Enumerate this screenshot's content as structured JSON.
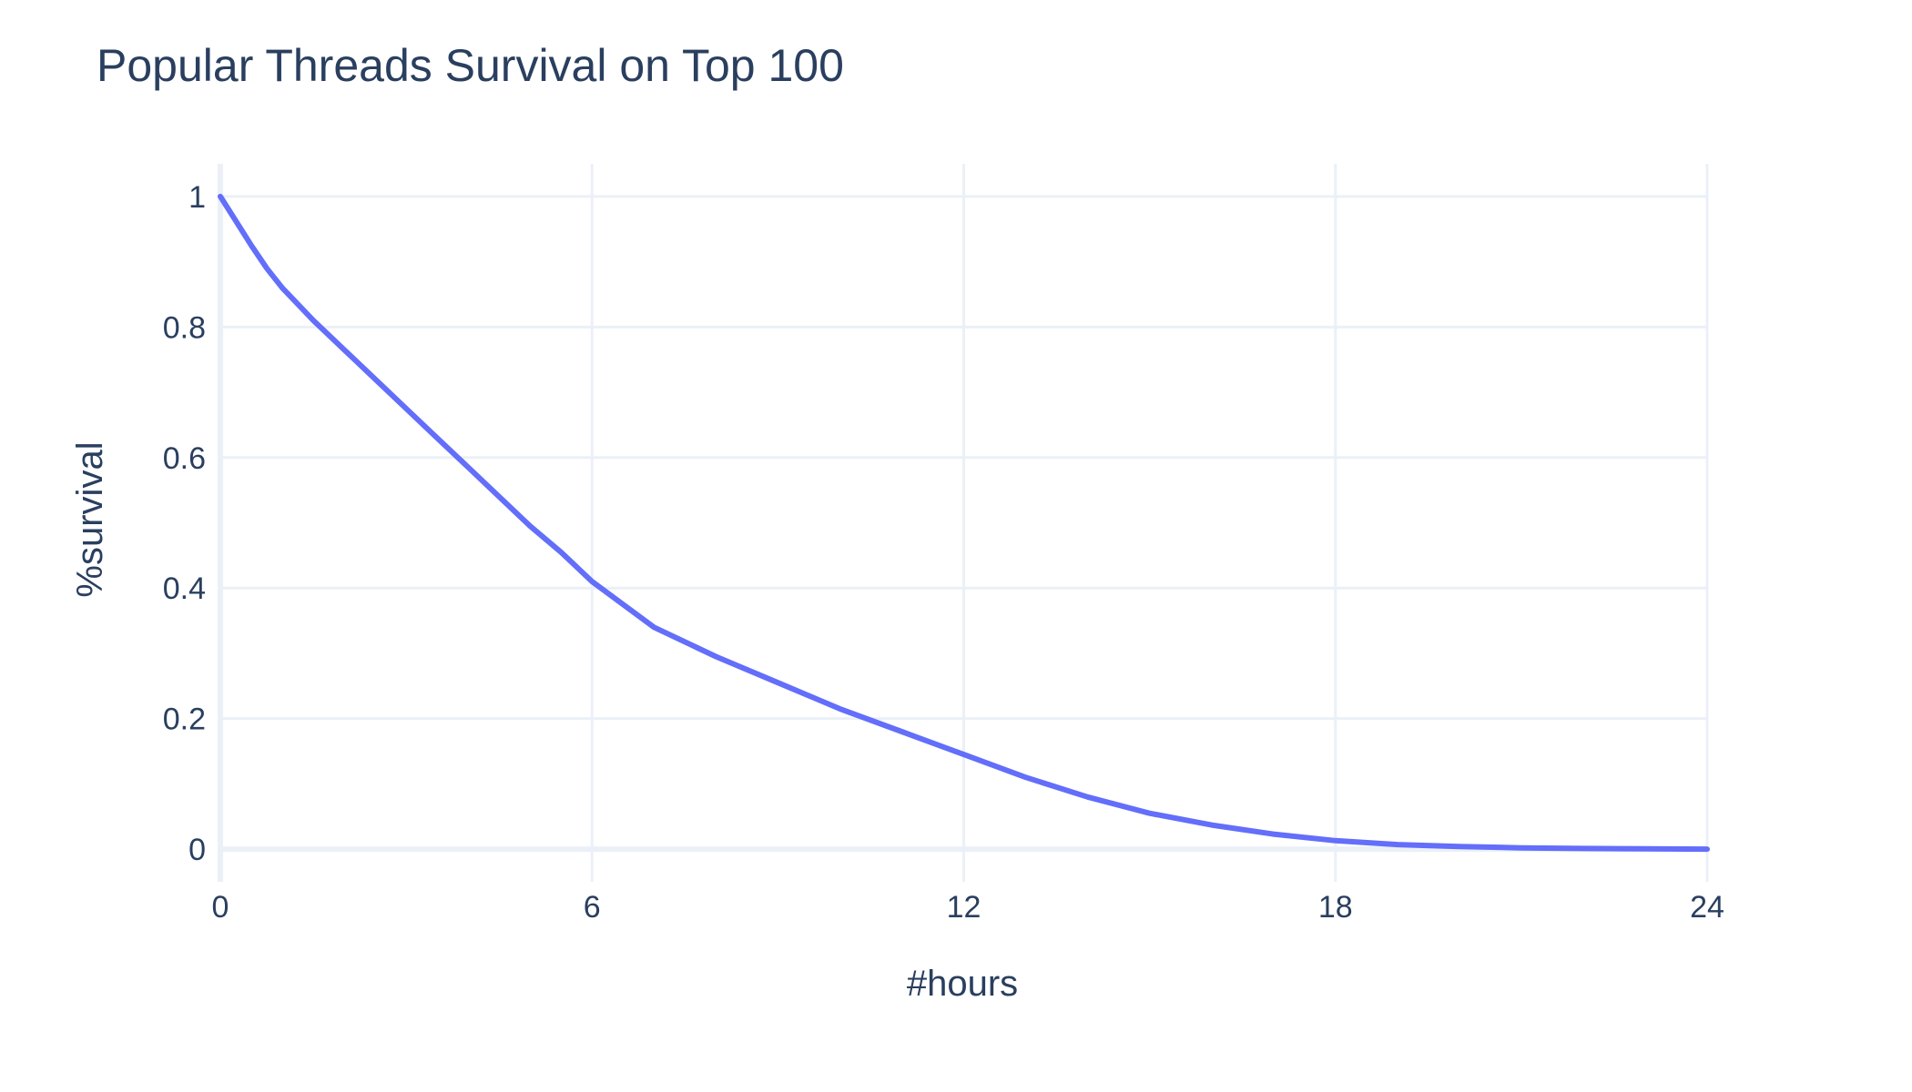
{
  "chart_data": {
    "type": "line",
    "title": "Popular Threads Survival on Top 100",
    "xlabel": "#hours",
    "ylabel": "%survival",
    "xlim": [
      0,
      24
    ],
    "ylim": [
      -0.05,
      1.05
    ],
    "x_ticks": [
      0,
      6,
      12,
      18,
      24
    ],
    "y_ticks": [
      0,
      0.2,
      0.4,
      0.6,
      0.8,
      1
    ],
    "x_tick_labels": [
      "0",
      "6",
      "12",
      "18",
      "24"
    ],
    "y_tick_labels": [
      "0",
      "0.2",
      "0.4",
      "0.6",
      "0.8",
      "1"
    ],
    "grid": true,
    "legend": "none",
    "series": [
      {
        "color": "#636efa",
        "x": [
          0,
          0.1,
          0.3,
          0.5,
          0.75,
          1,
          1.5,
          2,
          2.5,
          3,
          3.5,
          4,
          4.5,
          5,
          5.5,
          6,
          7,
          8,
          9,
          10,
          11,
          12,
          13,
          14,
          15,
          16,
          17,
          18,
          19,
          20,
          21,
          22,
          23,
          24
        ],
        "y": [
          1.0,
          0.985,
          0.955,
          0.925,
          0.89,
          0.86,
          0.81,
          0.765,
          0.72,
          0.675,
          0.63,
          0.585,
          0.54,
          0.495,
          0.455,
          0.41,
          0.34,
          0.295,
          0.255,
          0.215,
          0.18,
          0.145,
          0.11,
          0.08,
          0.055,
          0.037,
          0.023,
          0.013,
          0.007,
          0.004,
          0.002,
          0.001,
          0.0005,
          0
        ]
      }
    ]
  }
}
